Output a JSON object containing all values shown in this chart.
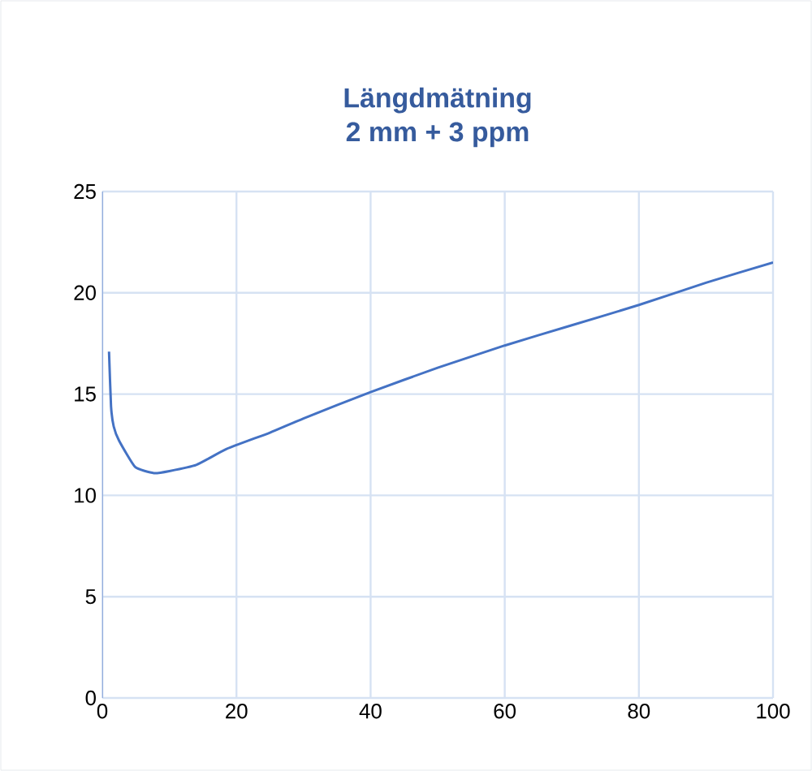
{
  "chart_data": {
    "type": "line",
    "title": "Längdmätning\n2 mm + 3 ppm",
    "x": [
      1,
      1.3,
      1.7,
      2.5,
      4.9,
      7.7,
      10,
      14,
      18.6,
      25,
      30,
      40,
      50,
      60,
      70,
      80,
      90,
      100
    ],
    "values": [
      17.1,
      14.4,
      13.4,
      12.7,
      11.4,
      11.1,
      11.2,
      11.5,
      12.3,
      13.1,
      13.8,
      15.1,
      16.3,
      17.4,
      18.4,
      19.4,
      20.5,
      21.5
    ],
    "color": "#4472c4",
    "xlim": [
      0,
      100
    ],
    "ylim": [
      0,
      25
    ],
    "xticks": [
      0,
      20,
      40,
      60,
      80,
      100
    ],
    "yticks": [
      0,
      5,
      10,
      15,
      20,
      25
    ],
    "grid": true,
    "marker": "none",
    "line_style": "solid"
  }
}
